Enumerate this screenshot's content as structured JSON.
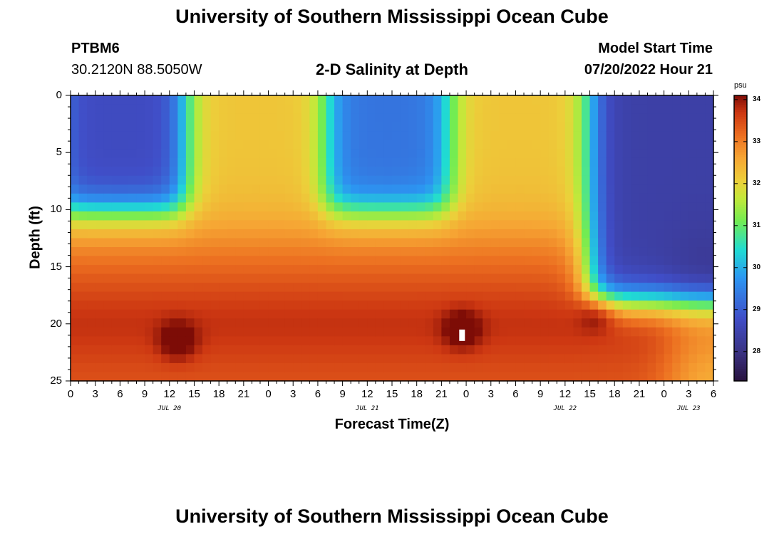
{
  "header": {
    "title": "University of Southern Mississippi Ocean Cube",
    "station": "PTBM6",
    "coords": "30.2120N  88.5050W",
    "chart_title": "2-D Salinity at Depth",
    "model_label": "Model Start Time",
    "model_time": "07/20/2022 Hour 21"
  },
  "footer": {
    "title": "University of Southern Mississippi Ocean Cube"
  },
  "chart_data": {
    "type": "heatmap",
    "title": "2-D Salinity at Depth",
    "xlabel": "Forecast Time(Z)",
    "ylabel": "Depth (ft)",
    "x_range_hours": [
      0,
      78
    ],
    "y_range_ft": [
      0,
      25
    ],
    "x_tick_labels": [
      "0",
      "3",
      "6",
      "9",
      "12",
      "15",
      "18",
      "21",
      "0",
      "3",
      "6",
      "9",
      "12",
      "15",
      "18",
      "21",
      "0",
      "3",
      "6",
      "9",
      "12",
      "15",
      "18",
      "21",
      "0",
      "3",
      "6"
    ],
    "date_labels": [
      {
        "label": "JUL 20",
        "hour": 12
      },
      {
        "label": "JUL 21",
        "hour": 36
      },
      {
        "label": "JUL 22",
        "hour": 60
      },
      {
        "label": "JUL 23",
        "hour": 75
      }
    ],
    "y_tick_labels": [
      "0",
      "5",
      "10",
      "15",
      "20",
      "25"
    ],
    "y_ticks": [
      0,
      5,
      10,
      15,
      20,
      25
    ],
    "colorbar": {
      "unit": "psu",
      "ticks": [
        "28",
        "29",
        "30",
        "31",
        "32",
        "33",
        "34"
      ],
      "tick_values": [
        28,
        29,
        30,
        31,
        32,
        33,
        34
      ],
      "range": [
        27.3,
        34.1
      ]
    },
    "low_salinity_cores": [
      {
        "hour_center": 6,
        "hour_halfwidth": 8,
        "depth_max_ft": 10,
        "min_psu": 28.7
      },
      {
        "hour_center": 38.5,
        "hour_halfwidth": 7.5,
        "depth_max_ft": 10,
        "min_psu": 29.3
      },
      {
        "hour_center": 75,
        "hour_halfwidth": 12,
        "depth_max_ft": 18,
        "min_psu": 28.4
      }
    ],
    "high_salinity_cores": [
      {
        "hour": 13,
        "depth_ft": 21.5,
        "max_psu": 34.1
      },
      {
        "hour": 47.5,
        "depth_ft": 20.5,
        "max_psu": 34.1
      },
      {
        "hour": 64,
        "depth_ft": 19,
        "max_psu": 33.6
      }
    ],
    "missing_cell": {
      "hour": 47.5,
      "depth_ft": 21
    }
  }
}
